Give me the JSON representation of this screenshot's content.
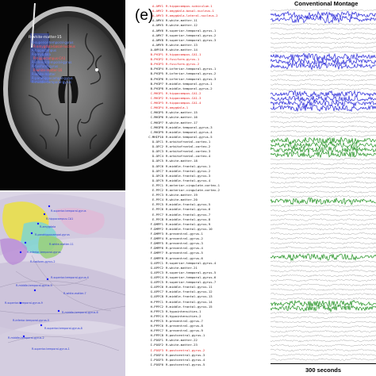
{
  "panel_letter": "(e)",
  "montage_title": "Conventional Montage",
  "scale_label": "300 seconds",
  "mri_labels": {
    "white_matter": "R-white-matter-15",
    "blue_rows": [
      "R-superior-temporal-gyrus",
      "R-hippocampus",
      "R-amygdala",
      "R-inferior-temporal-gyrus",
      "R-fusiform-gyrus",
      "R-white-matter",
      "R-parahippocampal-gyrus",
      "R-middle-temporal-gyrus"
    ],
    "red_rows": [
      "R-amygdala-basal-nucleus",
      "R-hippocampus-CA1",
      "R-white-matter-16"
    ]
  },
  "render_labels": [
    "R-superior-temporal-gyrus",
    "R-hippocampus-CA1",
    "R-amygdala",
    "R-parahippocampal-gyrus",
    "R-white-matter-11",
    "R-inferior-temporal-gyrus",
    "R-fusiform-gyrus-2",
    "R-superior-temporal-gyrus-4",
    "R-middle-temporal-gyrus-3",
    "R-white-matter-7",
    "R-superior-temporal-gyrus-9",
    "R-middle-temporal-gyrus-6",
    "R-inferior-temporal-gyrus-5",
    "R-superior-temporal-gyrus-8",
    "R-middle-temporal-gyrus-2",
    "R-superior-temporal-gyrus-1"
  ],
  "colors": {
    "red": "#e01818",
    "black": "#111111",
    "blue": "#1a1ad6",
    "green": "#138a13",
    "gray": "#8a8a8a"
  },
  "channels": [
    {
      "code": "A-AMY1",
      "region": "R-hippocampus-subiculum-1",
      "color": "red"
    },
    {
      "code": "A-AMY2",
      "region": "R-amygdala-basal-nucleus-1",
      "color": "red"
    },
    {
      "code": "A-AMY3",
      "region": "R-amygdala-lateral-nucleus-2",
      "color": "red"
    },
    {
      "code": "A-AMY4",
      "region": "R-white-matter-11",
      "color": "black"
    },
    {
      "code": "A-AMY5",
      "region": "R-white-matter-12",
      "color": "black"
    },
    {
      "code": "A-AMY6",
      "region": "R-superior-temporal-gyrus-1",
      "color": "black"
    },
    {
      "code": "A-AMY7",
      "region": "R-superior-temporal-gyrus-2",
      "color": "black"
    },
    {
      "code": "A-AMY8",
      "region": "R-superior-temporal-gyrus-3",
      "color": "black"
    },
    {
      "code": "A-AMY9",
      "region": "R-white-matter-13",
      "color": "black"
    },
    {
      "code": "A-AMY10",
      "region": "R-white-matter-14",
      "color": "black"
    },
    {
      "code": "B-PHIP1",
      "region": "R-hippocampus-CA1-1",
      "color": "red"
    },
    {
      "code": "B-PHIP2",
      "region": "R-fusiform-gyrus-1",
      "color": "red"
    },
    {
      "code": "B-PHIP3",
      "region": "R-fusiform-gyrus-2",
      "color": "red"
    },
    {
      "code": "B-PHIP4",
      "region": "R-inferior-temporal-gyrus-1",
      "color": "black"
    },
    {
      "code": "B-PHIP5",
      "region": "R-inferior-temporal-gyrus-2",
      "color": "black"
    },
    {
      "code": "B-PHIP6",
      "region": "R-inferior-temporal-gyrus-3",
      "color": "black"
    },
    {
      "code": "B-PHIP7",
      "region": "R-middle-temporal-gyrus-1",
      "color": "black"
    },
    {
      "code": "B-PHIP8",
      "region": "R-middle-temporal-gyrus-2",
      "color": "black"
    },
    {
      "code": "C-MHIP1",
      "region": "R-hippocampus-CA1-2",
      "color": "red"
    },
    {
      "code": "C-MHIP2",
      "region": "R-hippocampus-CA1-3",
      "color": "red"
    },
    {
      "code": "C-MHIP3",
      "region": "R-hippocampus-CA1-4",
      "color": "red"
    },
    {
      "code": "C-MHIP4",
      "region": "R-amygdala-1",
      "color": "red"
    },
    {
      "code": "C-MHIP5",
      "region": "R-white-matter-15",
      "color": "black"
    },
    {
      "code": "C-MHIP6",
      "region": "R-white-matter-16",
      "color": "black"
    },
    {
      "code": "C-MHIP7",
      "region": "R-white-matter-17",
      "color": "black"
    },
    {
      "code": "C-MHIP8",
      "region": "R-middle-temporal-gyrus-3",
      "color": "black"
    },
    {
      "code": "C-MHIP9",
      "region": "R-middle-temporal-gyrus-4",
      "color": "black"
    },
    {
      "code": "C-MHIP10",
      "region": "R-middle-temporal-gyrus-5",
      "color": "black"
    },
    {
      "code": "D-OFC1",
      "region": "R-orbitofrontal-cortex-1",
      "color": "black"
    },
    {
      "code": "D-OFC2",
      "region": "R-orbitofrontal-cortex-2",
      "color": "black"
    },
    {
      "code": "D-OFC3",
      "region": "R-orbitofrontal-cortex-3",
      "color": "black"
    },
    {
      "code": "D-OFC4",
      "region": "R-orbitofrontal-cortex-4",
      "color": "black"
    },
    {
      "code": "D-OFC5",
      "region": "R-white-matter-18",
      "color": "black"
    },
    {
      "code": "D-OFC6",
      "region": "R-middle-frontal-gyrus-1",
      "color": "black"
    },
    {
      "code": "D-OFC7",
      "region": "R-middle-frontal-gyrus-2",
      "color": "black"
    },
    {
      "code": "D-OFC8",
      "region": "R-middle-frontal-gyrus-3",
      "color": "black"
    },
    {
      "code": "D-OFC9",
      "region": "R-middle-frontal-gyrus-4",
      "color": "black"
    },
    {
      "code": "E-PFC1",
      "region": "R-anterior-cingulate-cortex-1",
      "color": "black"
    },
    {
      "code": "E-PFC2",
      "region": "R-anterior-cingulate-cortex-2",
      "color": "black"
    },
    {
      "code": "E-PFC3",
      "region": "R-white-matter-19",
      "color": "black"
    },
    {
      "code": "E-PFC4",
      "region": "R-white-matter-20",
      "color": "black"
    },
    {
      "code": "E-PFC5",
      "region": "R-middle-frontal-gyrus-5",
      "color": "black"
    },
    {
      "code": "E-PFC6",
      "region": "R-middle-frontal-gyrus-6",
      "color": "black"
    },
    {
      "code": "E-PFC7",
      "region": "R-middle-frontal-gyrus-7",
      "color": "black"
    },
    {
      "code": "E-PFC8",
      "region": "R-middle-frontal-gyrus-8",
      "color": "black"
    },
    {
      "code": "F-DMPF1",
      "region": "R-middle-frontal-gyrus-9",
      "color": "black"
    },
    {
      "code": "F-DMPF2",
      "region": "R-middle-frontal-gyrus-10",
      "color": "black"
    },
    {
      "code": "F-DMPF3",
      "region": "R-precentral-gyrus-1",
      "color": "black"
    },
    {
      "code": "F-DMPF4",
      "region": "R-precentral-gyrus-2",
      "color": "black"
    },
    {
      "code": "F-DMPF5",
      "region": "R-precentral-gyrus-3",
      "color": "black"
    },
    {
      "code": "F-DMPF6",
      "region": "R-precentral-gyrus-4",
      "color": "black"
    },
    {
      "code": "F-DMPF7",
      "region": "R-precentral-gyrus-5",
      "color": "black"
    },
    {
      "code": "F-DMPF8",
      "region": "R-precentral-gyrus-6",
      "color": "black"
    },
    {
      "code": "G-APFC1",
      "region": "R-superior-temporal-gyrus-4",
      "color": "black"
    },
    {
      "code": "G-APFC2",
      "region": "R-white-matter-21",
      "color": "black"
    },
    {
      "code": "G-APFC3",
      "region": "R-superior-temporal-gyrus-5",
      "color": "black"
    },
    {
      "code": "G-APFC4",
      "region": "R-superior-temporal-gyrus-6",
      "color": "black"
    },
    {
      "code": "G-APFC5",
      "region": "R-superior-temporal-gyrus-7",
      "color": "black"
    },
    {
      "code": "G-APFC6",
      "region": "R-middle-frontal-gyrus-11",
      "color": "black"
    },
    {
      "code": "G-APFC7",
      "region": "R-middle-frontal-gyrus-12",
      "color": "black"
    },
    {
      "code": "G-APFC8",
      "region": "R-middle-frontal-gyrus-13",
      "color": "black"
    },
    {
      "code": "H-PPFC1",
      "region": "R-middle-frontal-gyrus-14",
      "color": "black"
    },
    {
      "code": "H-PPFC2",
      "region": "R-middle-frontal-gyrus-15",
      "color": "black"
    },
    {
      "code": "H-PPFC3",
      "region": "R-hypointensities-1",
      "color": "black"
    },
    {
      "code": "H-PPFC4",
      "region": "R-hypointensities-2",
      "color": "black"
    },
    {
      "code": "H-PPFC5",
      "region": "R-precentral-gyrus-7",
      "color": "black"
    },
    {
      "code": "H-PPFC6",
      "region": "R-precentral-gyrus-8",
      "color": "black"
    },
    {
      "code": "H-PPFC7",
      "region": "R-precentral-gyrus-9",
      "color": "black"
    },
    {
      "code": "H-PPFC8",
      "region": "R-postcentral-gyrus-1",
      "color": "black"
    },
    {
      "code": "I-POSF1",
      "region": "R-white-matter-22",
      "color": "black"
    },
    {
      "code": "I-POSF2",
      "region": "R-white-matter-23",
      "color": "black"
    },
    {
      "code": "I-POSF3",
      "region": "R-postcentral-gyrus-2",
      "color": "red"
    },
    {
      "code": "I-POSF4",
      "region": "R-postcentral-gyrus-3",
      "color": "black"
    },
    {
      "code": "I-POSF5",
      "region": "R-postcentral-gyrus-4",
      "color": "black"
    },
    {
      "code": "I-POSF6",
      "region": "R-postcentral-gyrus-5",
      "color": "black"
    }
  ],
  "trace_colors": [
    "gray",
    "blue",
    "blue",
    "gray",
    "gray",
    "gray",
    "gray",
    "gray",
    "gray",
    "gray",
    "blue",
    "blue",
    "blue",
    "gray",
    "gray",
    "gray",
    "gray",
    "gray",
    "blue",
    "blue",
    "blue",
    "blue",
    "gray",
    "gray",
    "gray",
    "gray",
    "gray",
    "gray",
    "green",
    "green",
    "green",
    "green",
    "gray",
    "gray",
    "gray",
    "gray",
    "gray",
    "gray",
    "gray",
    "gray",
    "gray",
    "green",
    "gray",
    "gray",
    "gray",
    "gray",
    "gray",
    "gray",
    "gray",
    "gray",
    "gray",
    "gray",
    "gray",
    "green",
    "gray",
    "gray",
    "gray",
    "gray",
    "gray",
    "gray",
    "gray",
    "gray",
    "gray",
    "green",
    "green",
    "gray",
    "gray",
    "gray",
    "gray",
    "gray",
    "gray",
    "gray",
    "gray",
    "gray",
    "gray",
    "gray"
  ]
}
